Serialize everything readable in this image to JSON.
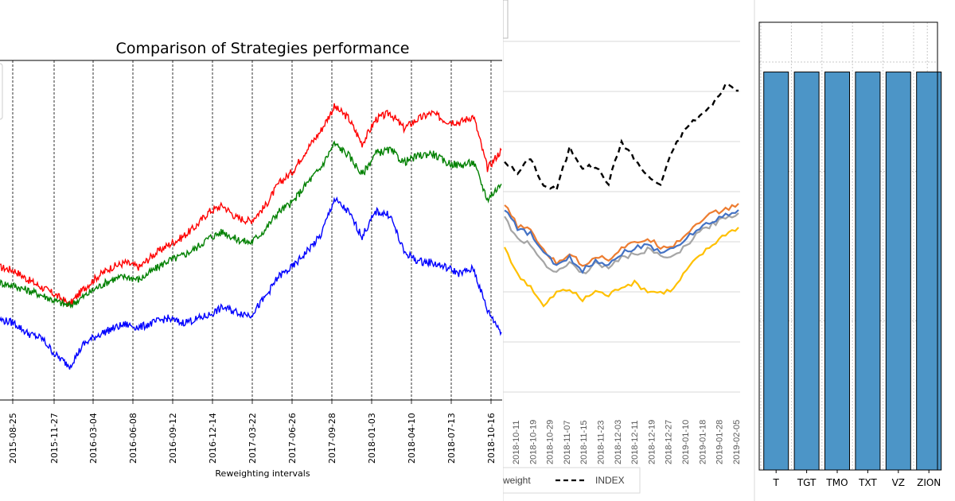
{
  "chart_data": [
    {
      "type": "line",
      "title": "Comparison of Strategies performance",
      "xlabel": "Reweighting intervals",
      "ylabel": "",
      "x_ticks": [
        "2015-08-25",
        "2015-11-27",
        "2016-03-04",
        "2016-06-08",
        "2016-09-12",
        "2016-12-14",
        "2017-03-22",
        "2017-06-26",
        "2017-09-28",
        "2018-01-03",
        "2018-04-10",
        "2018-07-13",
        "2018-10-16"
      ],
      "grid": "vertical dashed lines at x ticks",
      "series": [
        {
          "color": "#ff0000",
          "values": [
            0.86,
            0.84,
            0.78,
            0.73,
            0.68,
            0.62,
            0.72,
            0.8,
            0.86,
            0.89,
            0.86,
            0.94,
            1.0,
            1.05,
            1.12,
            1.22,
            1.26,
            1.18,
            1.16,
            1.25,
            1.4,
            1.48,
            1.62,
            1.74,
            1.9,
            1.83,
            1.66,
            1.82,
            1.86,
            1.76,
            1.82,
            1.86,
            1.81,
            1.8,
            1.84,
            1.5,
            1.62
          ]
        },
        {
          "color": "#008000",
          "values": [
            0.76,
            0.74,
            0.71,
            0.68,
            0.64,
            0.61,
            0.67,
            0.73,
            0.78,
            0.8,
            0.78,
            0.84,
            0.9,
            0.93,
            0.98,
            1.05,
            1.09,
            1.04,
            1.02,
            1.1,
            1.22,
            1.28,
            1.4,
            1.5,
            1.66,
            1.59,
            1.46,
            1.6,
            1.62,
            1.54,
            1.58,
            1.6,
            1.54,
            1.52,
            1.54,
            1.3,
            1.4
          ]
        },
        {
          "color": "#0000ff",
          "values": [
            0.52,
            0.5,
            0.43,
            0.4,
            0.29,
            0.22,
            0.36,
            0.42,
            0.46,
            0.49,
            0.47,
            0.5,
            0.53,
            0.5,
            0.52,
            0.55,
            0.6,
            0.57,
            0.55,
            0.66,
            0.8,
            0.86,
            0.96,
            1.06,
            1.3,
            1.22,
            1.06,
            1.22,
            1.2,
            0.96,
            0.9,
            0.89,
            0.86,
            0.82,
            0.85,
            0.58,
            0.44
          ]
        }
      ]
    },
    {
      "type": "line",
      "x_ticks": [
        "2018-10-11",
        "2018-10-19",
        "2018-10-29",
        "2018-11-07",
        "2018-11-15",
        "2018-11-23",
        "2018-12-03",
        "2018-12-11",
        "2018-12-19",
        "2018-12-27",
        "2019-01-10",
        "2019-01-18",
        "2019-01-28",
        "2019-02-05"
      ],
      "legend": [
        "weight",
        "INDEX"
      ],
      "legend_placement": "bottom",
      "grid": "horizontal",
      "series": [
        {
          "name": "INDEX",
          "color": "#000000",
          "dash": true,
          "values": [
            0.74,
            0.66,
            0.76,
            0.58,
            0.56,
            0.82,
            0.7,
            0.7,
            0.6,
            0.86,
            0.75,
            0.64,
            0.59,
            0.82,
            0.95,
            1.02,
            1.09,
            1.22,
            1.18
          ]
        },
        {
          "color": "#ed7d31",
          "values": [
            0.46,
            0.33,
            0.3,
            0.18,
            0.09,
            0.16,
            0.08,
            0.14,
            0.12,
            0.19,
            0.22,
            0.25,
            0.2,
            0.21,
            0.28,
            0.36,
            0.41,
            0.43,
            0.47
          ]
        },
        {
          "color": "#a5a5a5",
          "values": [
            0.38,
            0.25,
            0.21,
            0.1,
            0.04,
            0.1,
            0.03,
            0.09,
            0.07,
            0.13,
            0.15,
            0.18,
            0.14,
            0.13,
            0.21,
            0.29,
            0.34,
            0.38,
            0.41
          ]
        },
        {
          "color": "#4472c4",
          "values": [
            0.44,
            0.31,
            0.28,
            0.16,
            0.08,
            0.13,
            0.05,
            0.11,
            0.09,
            0.16,
            0.19,
            0.21,
            0.17,
            0.18,
            0.25,
            0.32,
            0.36,
            0.4,
            0.43
          ]
        },
        {
          "color": "#ffc000",
          "values": [
            0.2,
            0.02,
            -0.05,
            -0.18,
            -0.09,
            -0.07,
            -0.14,
            -0.08,
            -0.11,
            -0.05,
            -0.03,
            -0.08,
            -0.09,
            -0.07,
            0.05,
            0.14,
            0.21,
            0.28,
            0.32
          ]
        }
      ]
    },
    {
      "type": "bar",
      "categories": [
        "T",
        "TGT",
        "TMO",
        "TXT",
        "VZ",
        "ZION"
      ],
      "values": [
        0.8,
        0.8,
        0.8,
        0.8,
        0.8,
        0.8
      ],
      "ylim": [
        0,
        0.9
      ],
      "color": "#4c95c7",
      "grid": "dotted"
    }
  ]
}
